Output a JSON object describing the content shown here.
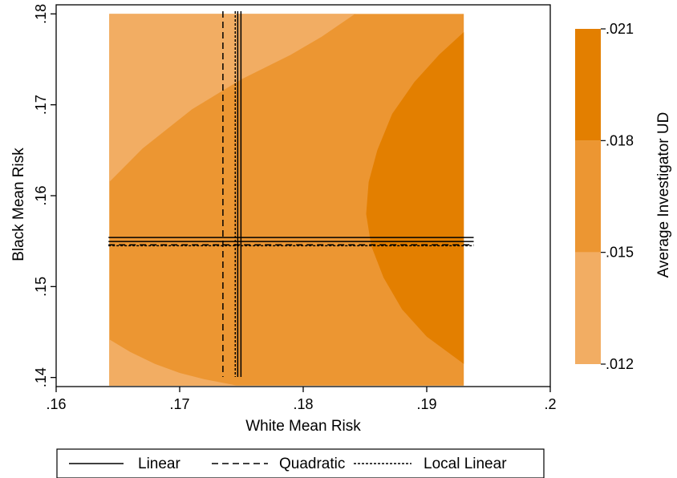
{
  "chart_data": {
    "type": "heatmap",
    "title": "",
    "xlabel": "White Mean Risk",
    "ylabel": "Black Mean Risk",
    "xlim": [
      0.16,
      0.2
    ],
    "ylim": [
      0.139,
      0.181
    ],
    "x_ticks": [
      {
        "value": 0.16,
        "label": ".16"
      },
      {
        "value": 0.17,
        "label": ".17"
      },
      {
        "value": 0.18,
        "label": ".18"
      },
      {
        "value": 0.19,
        "label": ".19"
      },
      {
        "value": 0.2,
        "label": ".2"
      }
    ],
    "y_ticks": [
      {
        "value": 0.14,
        "label": ".14"
      },
      {
        "value": 0.15,
        "label": ".15"
      },
      {
        "value": 0.16,
        "label": ".16"
      },
      {
        "value": 0.17,
        "label": ".17"
      },
      {
        "value": 0.18,
        "label": ".18"
      }
    ],
    "surface_domain": {
      "x": [
        0.1643,
        0.193
      ],
      "y": [
        0.1391,
        0.18
      ]
    },
    "colorbar": {
      "title": "Average Investigator UD",
      "ticks": [
        {
          "value": 0.012,
          "label": ".012"
        },
        {
          "value": 0.015,
          "label": ".015"
        },
        {
          "value": 0.018,
          "label": ".018"
        },
        {
          "value": 0.021,
          "label": ".021"
        }
      ],
      "bands": [
        {
          "range": [
            0.012,
            0.015
          ],
          "color": "#f2ad63"
        },
        {
          "range": [
            0.015,
            0.018
          ],
          "color": "#ec9632"
        },
        {
          "range": [
            0.018,
            0.021
          ],
          "color": "#e37f00"
        }
      ]
    },
    "contour_regions": [
      {
        "band": "low",
        "color": "#f2ad63",
        "points": [
          [
            0.1643,
            0.18
          ],
          [
            0.1842,
            0.18
          ],
          [
            0.1815,
            0.1775
          ],
          [
            0.179,
            0.1755
          ],
          [
            0.175,
            0.1728
          ],
          [
            0.171,
            0.1695
          ],
          [
            0.167,
            0.1652
          ],
          [
            0.1643,
            0.1615
          ]
        ]
      },
      {
        "band": "low",
        "color": "#f2ad63",
        "points": [
          [
            0.1643,
            0.1391
          ],
          [
            0.1747,
            0.1391
          ],
          [
            0.172,
            0.1398
          ],
          [
            0.17,
            0.1405
          ],
          [
            0.168,
            0.1415
          ],
          [
            0.166,
            0.1428
          ],
          [
            0.1643,
            0.1442
          ]
        ]
      },
      {
        "band": "high",
        "color": "#e37f00",
        "points": [
          [
            0.193,
            0.178
          ],
          [
            0.191,
            0.1755
          ],
          [
            0.189,
            0.1725
          ],
          [
            0.1872,
            0.169
          ],
          [
            0.186,
            0.165
          ],
          [
            0.1853,
            0.1615
          ],
          [
            0.1851,
            0.158
          ],
          [
            0.1855,
            0.1545
          ],
          [
            0.1865,
            0.151
          ],
          [
            0.188,
            0.1475
          ],
          [
            0.19,
            0.1445
          ],
          [
            0.193,
            0.1415
          ]
        ]
      }
    ],
    "series": [
      {
        "name": "Linear",
        "style": "solid",
        "x": 0.1747,
        "y": 0.1554
      },
      {
        "name": "Quadratic",
        "style": "dashed",
        "x": 0.1735,
        "y": 0.1546
      },
      {
        "name": "Local Linear",
        "style": "dotted",
        "x": 0.1745,
        "y": 0.1545
      }
    ],
    "legend": {
      "position": "bottom",
      "items": [
        {
          "label": "Linear",
          "style": "solid"
        },
        {
          "label": "Quadratic",
          "style": "dashed"
        },
        {
          "label": "Local Linear",
          "style": "dotted"
        }
      ]
    }
  }
}
